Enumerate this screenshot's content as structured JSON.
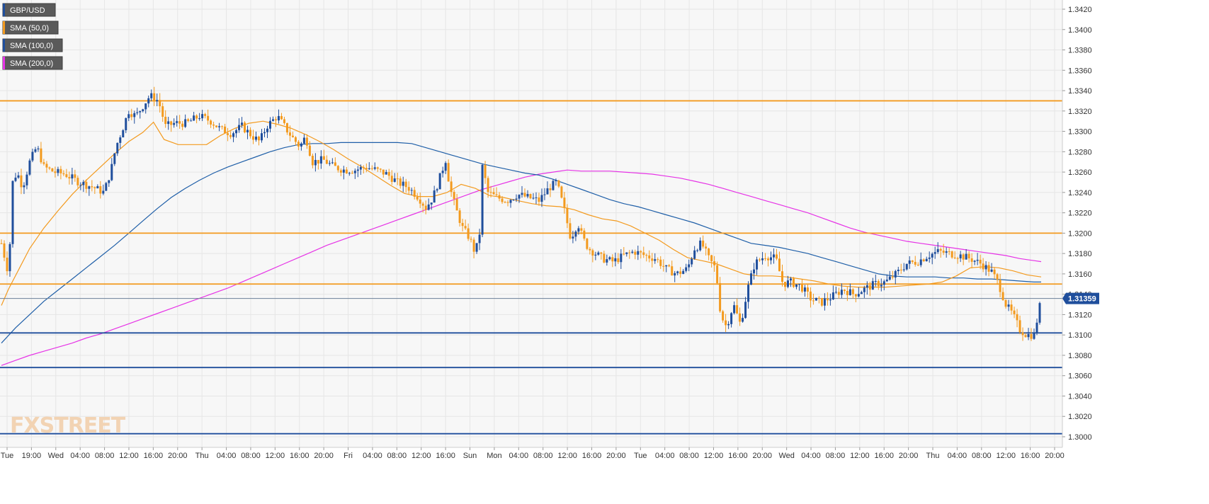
{
  "chart_data": {
    "type": "candlestick",
    "symbol": "GBP/USD",
    "ylim": [
      1.3,
      1.343
    ],
    "y_ticks": [
      "1.3420",
      "1.3400",
      "1.3380",
      "1.3360",
      "1.3340",
      "1.3320",
      "1.3300",
      "1.3280",
      "1.3260",
      "1.3240",
      "1.3220",
      "1.3200",
      "1.3180",
      "1.3160",
      "1.3140",
      "1.3120",
      "1.3100",
      "1.3080",
      "1.3060",
      "1.3040",
      "1.3020",
      "1.3000"
    ],
    "x_ticks": [
      "Tue",
      "19:00",
      "Wed",
      "04:00",
      "08:00",
      "12:00",
      "16:00",
      "20:00",
      "Thu",
      "04:00",
      "08:00",
      "12:00",
      "16:00",
      "20:00",
      "Fri",
      "04:00",
      "08:00",
      "12:00",
      "16:00",
      "Sun",
      "Mon",
      "04:00",
      "08:00",
      "12:00",
      "16:00",
      "20:00",
      "Tue",
      "04:00",
      "08:00",
      "12:00",
      "16:00",
      "20:00",
      "Wed",
      "04:00",
      "08:00",
      "12:00",
      "16:00",
      "20:00",
      "Thu",
      "04:00",
      "08:00",
      "12:00",
      "16:00",
      "20:00"
    ],
    "legend": [
      {
        "name": "GBP/USD",
        "color": "#1f4e9c"
      },
      {
        "name": "SMA (50,0)",
        "color": "#f39a1e"
      },
      {
        "name": "SMA (100,0)",
        "color": "#1f4e9c"
      },
      {
        "name": "SMA (200,0)",
        "color": "#e633e6"
      }
    ],
    "colors": {
      "up": "#1f4e9c",
      "down": "#f39a1e",
      "sma50": "#f39a1e",
      "sma100": "#1f5fa8",
      "sma200": "#e633e6",
      "grid": "#e6e6e6",
      "background": "#f7f7f7"
    },
    "current_price": {
      "value": 1.31359,
      "label": "1.31359"
    },
    "resistance_lines": [
      1.333,
      1.32,
      1.315
    ],
    "support_lines": [
      1.3102,
      1.3068,
      1.3003
    ],
    "sma50": [
      [
        0,
        1.3129
      ],
      [
        10,
        1.3145
      ],
      [
        25,
        1.3165
      ],
      [
        40,
        1.3185
      ],
      [
        60,
        1.3205
      ],
      [
        80,
        1.3222
      ],
      [
        100,
        1.3238
      ],
      [
        120,
        1.3252
      ],
      [
        140,
        1.3265
      ],
      [
        160,
        1.3278
      ],
      [
        180,
        1.329
      ],
      [
        200,
        1.3299
      ],
      [
        215,
        1.3309
      ],
      [
        230,
        1.3292
      ],
      [
        250,
        1.3287
      ],
      [
        270,
        1.3287
      ],
      [
        290,
        1.3287
      ],
      [
        310,
        1.3296
      ],
      [
        330,
        1.3303
      ],
      [
        350,
        1.3308
      ],
      [
        370,
        1.331
      ],
      [
        390,
        1.3307
      ],
      [
        410,
        1.3303
      ],
      [
        430,
        1.3297
      ],
      [
        450,
        1.329
      ],
      [
        470,
        1.3282
      ],
      [
        490,
        1.3273
      ],
      [
        510,
        1.3265
      ],
      [
        530,
        1.3256
      ],
      [
        550,
        1.3247
      ],
      [
        570,
        1.3239
      ],
      [
        590,
        1.3236
      ],
      [
        610,
        1.3236
      ],
      [
        630,
        1.324
      ],
      [
        650,
        1.3248
      ],
      [
        670,
        1.3244
      ],
      [
        690,
        1.3237
      ],
      [
        710,
        1.3235
      ],
      [
        730,
        1.3232
      ],
      [
        750,
        1.3229
      ],
      [
        770,
        1.3227
      ],
      [
        790,
        1.3226
      ],
      [
        810,
        1.3223
      ],
      [
        830,
        1.3218
      ],
      [
        850,
        1.3214
      ],
      [
        870,
        1.3212
      ],
      [
        890,
        1.3207
      ],
      [
        910,
        1.32
      ],
      [
        930,
        1.3193
      ],
      [
        950,
        1.3184
      ],
      [
        970,
        1.3176
      ],
      [
        990,
        1.3173
      ],
      [
        1010,
        1.317
      ],
      [
        1030,
        1.3165
      ],
      [
        1050,
        1.316
      ],
      [
        1070,
        1.3158
      ],
      [
        1090,
        1.3158
      ],
      [
        1110,
        1.3157
      ],
      [
        1130,
        1.3155
      ],
      [
        1150,
        1.3153
      ],
      [
        1170,
        1.315
      ],
      [
        1190,
        1.3148
      ],
      [
        1210,
        1.3147
      ],
      [
        1230,
        1.3147
      ],
      [
        1250,
        1.3147
      ],
      [
        1270,
        1.3148
      ],
      [
        1290,
        1.3149
      ],
      [
        1310,
        1.315
      ],
      [
        1330,
        1.3152
      ],
      [
        1350,
        1.3158
      ],
      [
        1370,
        1.3166
      ],
      [
        1390,
        1.3167
      ],
      [
        1410,
        1.3166
      ],
      [
        1430,
        1.3163
      ],
      [
        1450,
        1.3159
      ],
      [
        1470,
        1.3157
      ]
    ],
    "sma100": [
      [
        0,
        1.3092
      ],
      [
        20,
        1.3107
      ],
      [
        40,
        1.312
      ],
      [
        60,
        1.3133
      ],
      [
        80,
        1.3144
      ],
      [
        100,
        1.3155
      ],
      [
        120,
        1.3166
      ],
      [
        140,
        1.3177
      ],
      [
        160,
        1.3188
      ],
      [
        180,
        1.32
      ],
      [
        200,
        1.3212
      ],
      [
        220,
        1.3224
      ],
      [
        240,
        1.3235
      ],
      [
        260,
        1.3244
      ],
      [
        280,
        1.3252
      ],
      [
        300,
        1.3259
      ],
      [
        320,
        1.3265
      ],
      [
        340,
        1.327
      ],
      [
        360,
        1.3275
      ],
      [
        380,
        1.328
      ],
      [
        400,
        1.3284
      ],
      [
        420,
        1.3287
      ],
      [
        440,
        1.3288
      ],
      [
        460,
        1.3288
      ],
      [
        480,
        1.3289
      ],
      [
        500,
        1.3289
      ],
      [
        520,
        1.3289
      ],
      [
        540,
        1.3289
      ],
      [
        560,
        1.3289
      ],
      [
        580,
        1.3288
      ],
      [
        600,
        1.3284
      ],
      [
        620,
        1.328
      ],
      [
        640,
        1.3276
      ],
      [
        660,
        1.3272
      ],
      [
        680,
        1.3268
      ],
      [
        700,
        1.3265
      ],
      [
        720,
        1.3262
      ],
      [
        740,
        1.3259
      ],
      [
        760,
        1.3257
      ],
      [
        780,
        1.3253
      ],
      [
        800,
        1.3248
      ],
      [
        820,
        1.3243
      ],
      [
        840,
        1.3238
      ],
      [
        860,
        1.3233
      ],
      [
        880,
        1.3229
      ],
      [
        900,
        1.3226
      ],
      [
        920,
        1.3222
      ],
      [
        940,
        1.3218
      ],
      [
        960,
        1.3214
      ],
      [
        980,
        1.321
      ],
      [
        1000,
        1.3205
      ],
      [
        1020,
        1.32
      ],
      [
        1040,
        1.3195
      ],
      [
        1060,
        1.319
      ],
      [
        1080,
        1.3188
      ],
      [
        1100,
        1.3186
      ],
      [
        1120,
        1.3183
      ],
      [
        1140,
        1.318
      ],
      [
        1160,
        1.3176
      ],
      [
        1180,
        1.3172
      ],
      [
        1200,
        1.3168
      ],
      [
        1220,
        1.3164
      ],
      [
        1240,
        1.316
      ],
      [
        1260,
        1.3158
      ],
      [
        1280,
        1.3157
      ],
      [
        1300,
        1.3157
      ],
      [
        1320,
        1.3157
      ],
      [
        1340,
        1.3156
      ],
      [
        1360,
        1.3156
      ],
      [
        1380,
        1.3155
      ],
      [
        1400,
        1.3155
      ],
      [
        1420,
        1.3154
      ],
      [
        1440,
        1.3153
      ],
      [
        1460,
        1.3152
      ],
      [
        1470,
        1.3152
      ]
    ],
    "sma200": [
      [
        0,
        1.307
      ],
      [
        20,
        1.3075
      ],
      [
        40,
        1.308
      ],
      [
        60,
        1.3084
      ],
      [
        80,
        1.3088
      ],
      [
        100,
        1.3092
      ],
      [
        120,
        1.3097
      ],
      [
        140,
        1.3101
      ],
      [
        160,
        1.3106
      ],
      [
        180,
        1.3111
      ],
      [
        200,
        1.3116
      ],
      [
        220,
        1.3121
      ],
      [
        240,
        1.3126
      ],
      [
        260,
        1.3131
      ],
      [
        280,
        1.3136
      ],
      [
        300,
        1.3141
      ],
      [
        320,
        1.3146
      ],
      [
        340,
        1.3152
      ],
      [
        360,
        1.3158
      ],
      [
        380,
        1.3164
      ],
      [
        400,
        1.317
      ],
      [
        420,
        1.3176
      ],
      [
        440,
        1.3182
      ],
      [
        460,
        1.3188
      ],
      [
        480,
        1.3193
      ],
      [
        500,
        1.3198
      ],
      [
        520,
        1.3203
      ],
      [
        540,
        1.3208
      ],
      [
        560,
        1.3213
      ],
      [
        580,
        1.3218
      ],
      [
        600,
        1.3223
      ],
      [
        620,
        1.3228
      ],
      [
        640,
        1.3233
      ],
      [
        660,
        1.3238
      ],
      [
        680,
        1.3243
      ],
      [
        700,
        1.3247
      ],
      [
        720,
        1.3251
      ],
      [
        740,
        1.3255
      ],
      [
        760,
        1.3258
      ],
      [
        780,
        1.326
      ],
      [
        800,
        1.3262
      ],
      [
        820,
        1.3261
      ],
      [
        840,
        1.3261
      ],
      [
        860,
        1.3261
      ],
      [
        880,
        1.326
      ],
      [
        900,
        1.3259
      ],
      [
        920,
        1.3258
      ],
      [
        940,
        1.3256
      ],
      [
        960,
        1.3254
      ],
      [
        980,
        1.3251
      ],
      [
        1000,
        1.3248
      ],
      [
        1020,
        1.3244
      ],
      [
        1040,
        1.324
      ],
      [
        1060,
        1.3236
      ],
      [
        1080,
        1.3232
      ],
      [
        1100,
        1.3228
      ],
      [
        1120,
        1.3224
      ],
      [
        1140,
        1.322
      ],
      [
        1160,
        1.3215
      ],
      [
        1180,
        1.321
      ],
      [
        1200,
        1.3205
      ],
      [
        1220,
        1.3201
      ],
      [
        1240,
        1.3198
      ],
      [
        1260,
        1.3195
      ],
      [
        1280,
        1.3192
      ],
      [
        1300,
        1.319
      ],
      [
        1320,
        1.3188
      ],
      [
        1340,
        1.3186
      ],
      [
        1360,
        1.3184
      ],
      [
        1380,
        1.3182
      ],
      [
        1400,
        1.318
      ],
      [
        1420,
        1.3178
      ],
      [
        1440,
        1.3175
      ],
      [
        1460,
        1.3173
      ],
      [
        1470,
        1.3172
      ]
    ],
    "price_path": [
      [
        0,
        1.319
      ],
      [
        10,
        1.316
      ],
      [
        16,
        1.325
      ],
      [
        22,
        1.326
      ],
      [
        30,
        1.3245
      ],
      [
        40,
        1.327
      ],
      [
        50,
        1.3285
      ],
      [
        60,
        1.3265
      ],
      [
        75,
        1.326
      ],
      [
        90,
        1.3258
      ],
      [
        110,
        1.325
      ],
      [
        130,
        1.3245
      ],
      [
        145,
        1.324
      ],
      [
        155,
        1.3262
      ],
      [
        162,
        1.3285
      ],
      [
        170,
        1.33
      ],
      [
        180,
        1.332
      ],
      [
        190,
        1.3315
      ],
      [
        200,
        1.3325
      ],
      [
        210,
        1.3335
      ],
      [
        222,
        1.333
      ],
      [
        232,
        1.3305
      ],
      [
        245,
        1.3308
      ],
      [
        262,
        1.3308
      ],
      [
        280,
        1.3315
      ],
      [
        296,
        1.331
      ],
      [
        310,
        1.3302
      ],
      [
        325,
        1.3298
      ],
      [
        340,
        1.3305
      ],
      [
        355,
        1.3295
      ],
      [
        365,
        1.329
      ],
      [
        375,
        1.3305
      ],
      [
        390,
        1.3315
      ],
      [
        400,
        1.3305
      ],
      [
        410,
        1.3295
      ],
      [
        422,
        1.3285
      ],
      [
        430,
        1.3295
      ],
      [
        440,
        1.327
      ],
      [
        455,
        1.3272
      ],
      [
        470,
        1.3265
      ],
      [
        485,
        1.3262
      ],
      [
        500,
        1.3262
      ],
      [
        515,
        1.3265
      ],
      [
        530,
        1.3262
      ],
      [
        545,
        1.3258
      ],
      [
        560,
        1.325
      ],
      [
        575,
        1.3245
      ],
      [
        590,
        1.3235
      ],
      [
        600,
        1.3225
      ],
      [
        610,
        1.3235
      ],
      [
        620,
        1.3255
      ],
      [
        628,
        1.3272
      ],
      [
        634,
        1.3245
      ],
      [
        642,
        1.3225
      ],
      [
        652,
        1.3205
      ],
      [
        662,
        1.3195
      ],
      [
        670,
        1.318
      ],
      [
        676,
        1.32
      ],
      [
        680,
        1.3265
      ],
      [
        688,
        1.324
      ],
      [
        700,
        1.3235
      ],
      [
        715,
        1.3232
      ],
      [
        730,
        1.3238
      ],
      [
        745,
        1.3235
      ],
      [
        760,
        1.3232
      ],
      [
        775,
        1.3245
      ],
      [
        785,
        1.325
      ],
      [
        795,
        1.3225
      ],
      [
        805,
        1.3195
      ],
      [
        815,
        1.321
      ],
      [
        822,
        1.3195
      ],
      [
        830,
        1.3185
      ],
      [
        840,
        1.318
      ],
      [
        850,
        1.3175
      ],
      [
        865,
        1.3172
      ],
      [
        880,
        1.3178
      ],
      [
        895,
        1.3182
      ],
      [
        910,
        1.3178
      ],
      [
        925,
        1.3175
      ],
      [
        940,
        1.3165
      ],
      [
        955,
        1.316
      ],
      [
        970,
        1.3165
      ],
      [
        980,
        1.3185
      ],
      [
        990,
        1.319
      ],
      [
        1000,
        1.3175
      ],
      [
        1010,
        1.3165
      ],
      [
        1017,
        1.312
      ],
      [
        1025,
        1.3108
      ],
      [
        1035,
        1.313
      ],
      [
        1045,
        1.311
      ],
      [
        1055,
        1.3145
      ],
      [
        1065,
        1.317
      ],
      [
        1080,
        1.3178
      ],
      [
        1095,
        1.3175
      ],
      [
        1105,
        1.315
      ],
      [
        1115,
        1.3152
      ],
      [
        1130,
        1.3148
      ],
      [
        1145,
        1.3135
      ],
      [
        1160,
        1.3132
      ],
      [
        1175,
        1.3138
      ],
      [
        1190,
        1.3145
      ],
      [
        1205,
        1.314
      ],
      [
        1220,
        1.3145
      ],
      [
        1235,
        1.315
      ],
      [
        1250,
        1.3152
      ],
      [
        1265,
        1.316
      ],
      [
        1280,
        1.317
      ],
      [
        1295,
        1.3172
      ],
      [
        1310,
        1.3178
      ],
      [
        1325,
        1.3182
      ],
      [
        1340,
        1.318
      ],
      [
        1355,
        1.3178
      ],
      [
        1370,
        1.3175
      ],
      [
        1385,
        1.317
      ],
      [
        1400,
        1.3162
      ],
      [
        1410,
        1.315
      ],
      [
        1420,
        1.313
      ],
      [
        1430,
        1.312
      ],
      [
        1440,
        1.3105
      ],
      [
        1450,
        1.31
      ],
      [
        1460,
        1.31
      ],
      [
        1470,
        1.3135
      ]
    ]
  }
}
